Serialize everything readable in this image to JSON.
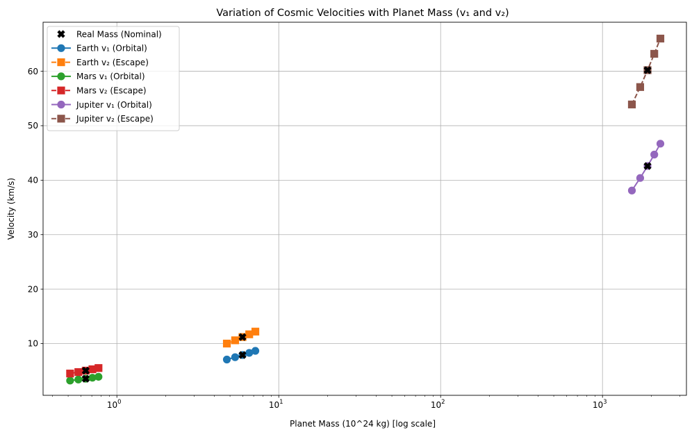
{
  "chart_data": {
    "type": "line",
    "title": "Variation of Cosmic Velocities with Planet Mass (v₁ and v₂)",
    "xlabel": "Planet Mass (10^24 kg) [log scale]",
    "ylabel": "Velocity (km/s)",
    "xscale": "log",
    "xlim": [
      0.35,
      3300
    ],
    "ylim": [
      0.5,
      69
    ],
    "grid": true,
    "legend_position": "top-left",
    "x_ticks": [
      {
        "value": 1,
        "base": "10",
        "exp": "0"
      },
      {
        "value": 10,
        "base": "10",
        "exp": "1"
      },
      {
        "value": 100,
        "base": "10",
        "exp": "2"
      },
      {
        "value": 1000,
        "base": "10",
        "exp": "3"
      }
    ],
    "y_ticks": [
      10,
      20,
      30,
      40,
      50,
      60
    ],
    "series": [
      {
        "name": "Earth v₁ (Orbital)",
        "color": "#1f77b4",
        "marker": "circle",
        "linestyle": "solid",
        "x": [
          4.78,
          5.375,
          5.97,
          6.57,
          7.17
        ],
        "y": [
          7.07,
          7.5,
          7.9,
          8.29,
          8.66
        ]
      },
      {
        "name": "Earth v₂ (Escape)",
        "color": "#ff7f0e",
        "marker": "square",
        "linestyle": "dashed",
        "x": [
          4.78,
          5.375,
          5.97,
          6.57,
          7.17
        ],
        "y": [
          10.0,
          10.6,
          11.2,
          11.7,
          12.2
        ]
      },
      {
        "name": "Mars v₁ (Orbital)",
        "color": "#2ca02c",
        "marker": "circle",
        "linestyle": "solid",
        "x": [
          0.514,
          0.578,
          0.642,
          0.706,
          0.77
        ],
        "y": [
          3.2,
          3.4,
          3.55,
          3.73,
          3.9
        ]
      },
      {
        "name": "Mars v₂ (Escape)",
        "color": "#d62728",
        "marker": "square",
        "linestyle": "dashed",
        "x": [
          0.514,
          0.578,
          0.642,
          0.706,
          0.77
        ],
        "y": [
          4.5,
          4.77,
          5.03,
          5.28,
          5.51
        ]
      },
      {
        "name": "Jupiter v₁ (Orbital)",
        "color": "#9467bd",
        "marker": "circle",
        "linestyle": "solid",
        "x": [
          1519,
          1709,
          1898,
          2088,
          2278
        ],
        "y": [
          38.1,
          40.4,
          42.6,
          44.7,
          46.7
        ]
      },
      {
        "name": "Jupiter v₂ (Escape)",
        "color": "#8c564b",
        "marker": "square",
        "linestyle": "dashed",
        "x": [
          1519,
          1709,
          1898,
          2088,
          2278
        ],
        "y": [
          53.9,
          57.1,
          60.2,
          63.2,
          66.0
        ]
      }
    ],
    "nominal": {
      "name": "Real Mass (Nominal)",
      "color": "#000000",
      "marker": "x",
      "points": [
        {
          "x": 5.97,
          "y": 7.9
        },
        {
          "x": 5.97,
          "y": 11.2
        },
        {
          "x": 0.642,
          "y": 3.55
        },
        {
          "x": 0.642,
          "y": 5.03
        },
        {
          "x": 1898,
          "y": 42.6
        },
        {
          "x": 1898,
          "y": 60.2
        }
      ]
    }
  }
}
